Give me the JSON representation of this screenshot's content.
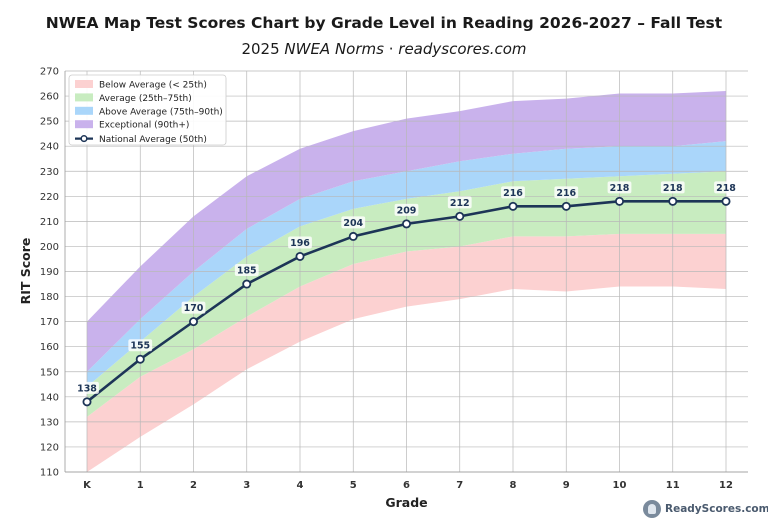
{
  "header": {
    "title": "NWEA Map Test Scores Chart by Grade Level in Reading 2026-2027 – Fall Test",
    "subtitle_prefix": "2025 ",
    "subtitle_norms": "NWEA Norms",
    "subtitle_sep": " · ",
    "subtitle_site": "readyscores.com"
  },
  "brand": {
    "label": "ReadyScores.com",
    "logo_icon": "owl-logo-icon"
  },
  "chart_data": {
    "type": "area",
    "title": "NWEA Map Test Scores Chart by Grade Level in Reading 2026-2027 – Fall Test",
    "xlabel": "Grade",
    "ylabel": "RIT Score",
    "categories": [
      "K",
      "1",
      "2",
      "3",
      "4",
      "5",
      "6",
      "7",
      "8",
      "9",
      "10",
      "11",
      "12"
    ],
    "ylim": [
      110,
      270
    ],
    "yticks": [
      110,
      120,
      130,
      140,
      150,
      160,
      170,
      180,
      190,
      200,
      210,
      220,
      230,
      240,
      250,
      260,
      270
    ],
    "grid": true,
    "legend_position": "top-left",
    "bands": [
      {
        "name": "Below Average (< 25th)",
        "color": "#fcd1d1",
        "lower": [
          110,
          124,
          137,
          151,
          162,
          171,
          176,
          179,
          183,
          182,
          184,
          184,
          183
        ],
        "upper": [
          132,
          148,
          159,
          172,
          184,
          193,
          198,
          200,
          204,
          204,
          205,
          205,
          205
        ]
      },
      {
        "name": "Average (25th–75th)",
        "color": "#c8ecc0",
        "lower": [
          132,
          148,
          159,
          172,
          184,
          193,
          198,
          200,
          204,
          204,
          205,
          205,
          205
        ],
        "upper": [
          144,
          162,
          180,
          196,
          208,
          215,
          219,
          222,
          226,
          227,
          228,
          229,
          230
        ]
      },
      {
        "name": "Above Average (75th–90th)",
        "color": "#aad6fa",
        "lower": [
          144,
          162,
          180,
          196,
          208,
          215,
          219,
          222,
          226,
          227,
          228,
          229,
          230
        ],
        "upper": [
          150,
          171,
          190,
          207,
          219,
          226,
          230,
          234,
          237,
          239,
          240,
          240,
          242
        ]
      },
      {
        "name": "Exceptional (90th+)",
        "color": "#c9b2ec",
        "lower": [
          150,
          171,
          190,
          207,
          219,
          226,
          230,
          234,
          237,
          239,
          240,
          240,
          242
        ],
        "upper": [
          170,
          192,
          212,
          228,
          239,
          246,
          251,
          254,
          258,
          259,
          261,
          261,
          262
        ]
      }
    ],
    "series": [
      {
        "name": "National Average (50th)",
        "color": "#1d3557",
        "values": [
          138,
          155,
          170,
          185,
          196,
          204,
          209,
          212,
          216,
          216,
          218,
          218,
          218
        ]
      }
    ]
  }
}
